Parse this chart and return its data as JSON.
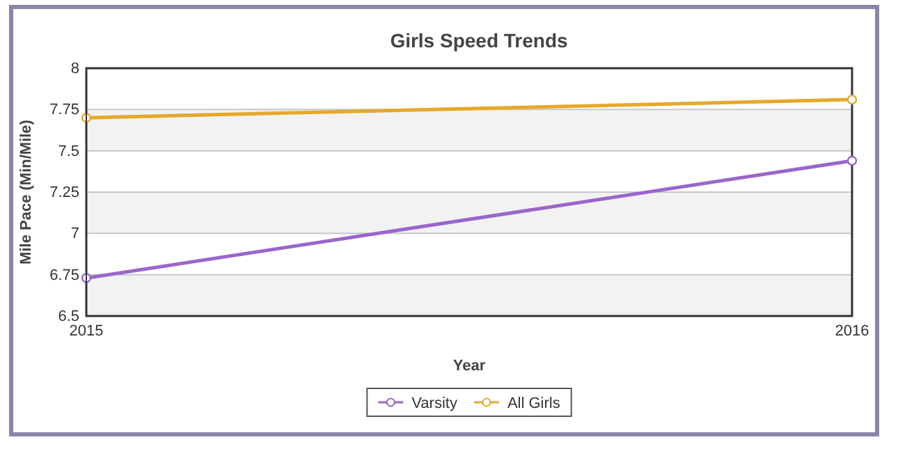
{
  "chart_data": {
    "type": "line",
    "title": "Girls Speed Trends",
    "xlabel": "Year",
    "ylabel": "Mile Pace (Min/Mile)",
    "x": [
      2015,
      2016
    ],
    "xlim": [
      2015,
      2016
    ],
    "xticks": [
      2015,
      2016
    ],
    "ylim": [
      6.5,
      8
    ],
    "yticks": [
      6.5,
      6.75,
      7,
      7.25,
      7.5,
      7.75,
      8
    ],
    "grid": "y",
    "legend": "bottom",
    "marker": "circle",
    "series": [
      {
        "name": "Varsity",
        "color": "#9966cc",
        "values": [
          6.73,
          7.44
        ]
      },
      {
        "name": "All Girls",
        "color": "#e5a82a",
        "values": [
          7.7,
          7.81
        ]
      }
    ]
  }
}
